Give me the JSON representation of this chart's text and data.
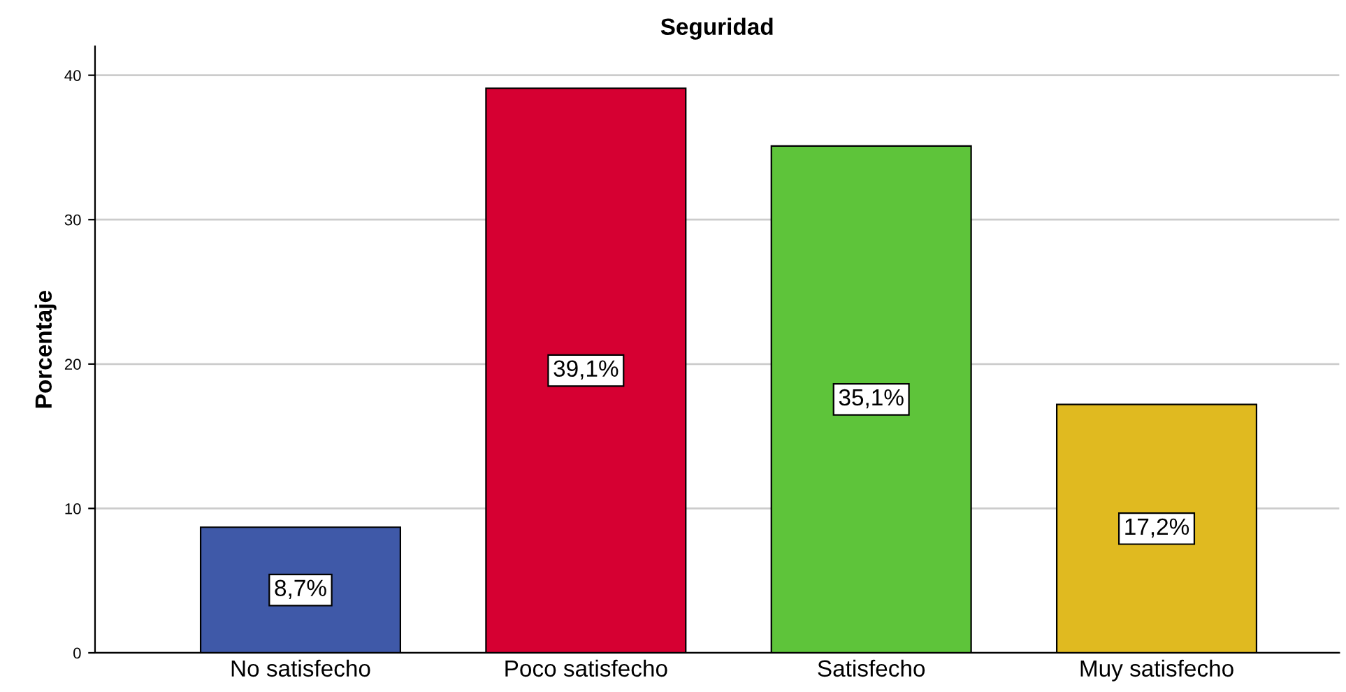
{
  "chart_data": {
    "type": "bar",
    "title": "Seguridad",
    "ylabel": "Porcentaje",
    "categories": [
      "No satisfecho",
      "Poco satisfecho",
      "Satisfecho",
      "Muy satisfecho"
    ],
    "values": [
      8.7,
      39.1,
      35.1,
      17.2
    ],
    "colors": [
      "#3f59a8",
      "#d60032",
      "#5ec43a",
      "#e0ba20"
    ],
    "value_labels": [
      "8,7%",
      "39,1%",
      "35,1%",
      "17,2%"
    ],
    "ylim": [
      0,
      42
    ],
    "yticks": [
      0,
      10,
      20,
      30,
      40
    ],
    "grid": "y",
    "legend": false
  }
}
